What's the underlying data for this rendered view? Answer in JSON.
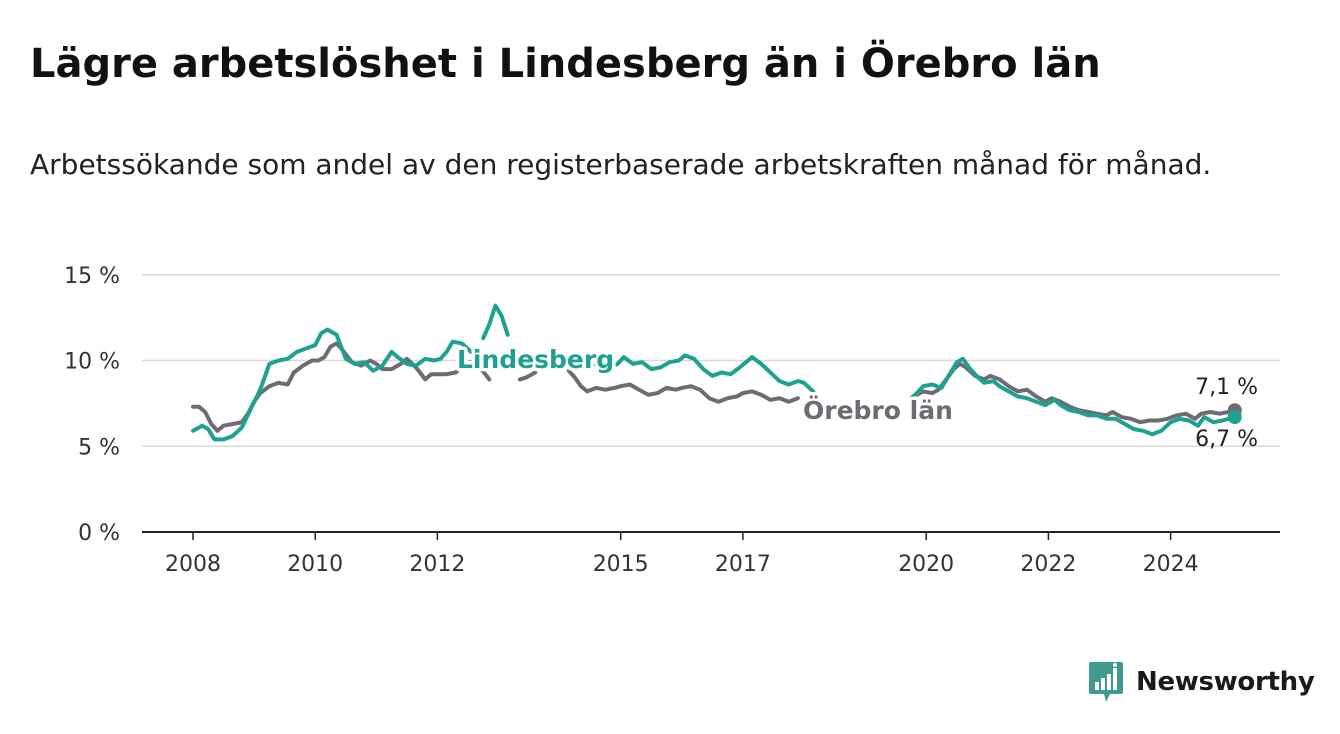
{
  "title": "Lägre arbetslöshet i Lindesberg än i Örebro län",
  "subtitle": "Arbetssökande som andel av den registerbaserade arbetskraften månad för månad.",
  "brand": {
    "name": "Newsworthy",
    "icon": "newsworthy-logo-icon",
    "color": "#3f9a91"
  },
  "chart_data": {
    "type": "line",
    "ylim": [
      0,
      15
    ],
    "xlim": [
      2008,
      2025.15
    ],
    "yticks": [
      {
        "value": 0,
        "label": "0 %"
      },
      {
        "value": 5,
        "label": "5 %"
      },
      {
        "value": 10,
        "label": "10 %"
      },
      {
        "value": 15,
        "label": "15 %"
      }
    ],
    "xticks": [
      {
        "value": 2008,
        "label": "2008"
      },
      {
        "value": 2010,
        "label": "2010"
      },
      {
        "value": 2012,
        "label": "2012"
      },
      {
        "value": 2015,
        "label": "2015"
      },
      {
        "value": 2017,
        "label": "2017"
      },
      {
        "value": 2020,
        "label": "2020"
      },
      {
        "value": 2022,
        "label": "2022"
      },
      {
        "value": 2024,
        "label": "2024"
      }
    ],
    "grid": true,
    "legend": "inline labels",
    "series": [
      {
        "name": "Örebro län",
        "color": "#6e6c72",
        "end_label": "7,1 %",
        "segments": [
          [
            [
              2008.0,
              7.3
            ],
            [
              2008.1,
              7.3
            ],
            [
              2008.2,
              7.0
            ],
            [
              2008.3,
              6.3
            ],
            [
              2008.4,
              5.9
            ],
            [
              2008.5,
              6.2
            ],
            [
              2008.65,
              6.3
            ],
            [
              2008.8,
              6.4
            ],
            [
              2008.9,
              6.9
            ],
            [
              2009.0,
              7.6
            ],
            [
              2009.1,
              8.1
            ],
            [
              2009.25,
              8.5
            ],
            [
              2009.4,
              8.7
            ],
            [
              2009.55,
              8.6
            ],
            [
              2009.65,
              9.3
            ],
            [
              2009.8,
              9.7
            ],
            [
              2009.95,
              10.0
            ],
            [
              2010.05,
              10.0
            ],
            [
              2010.15,
              10.2
            ],
            [
              2010.25,
              10.8
            ],
            [
              2010.35,
              11.0
            ],
            [
              2010.45,
              10.6
            ],
            [
              2010.6,
              9.9
            ],
            [
              2010.75,
              9.7
            ],
            [
              2010.9,
              10.0
            ],
            [
              2011.0,
              9.8
            ],
            [
              2011.1,
              9.5
            ],
            [
              2011.25,
              9.5
            ],
            [
              2011.4,
              9.8
            ],
            [
              2011.5,
              10.1
            ],
            [
              2011.65,
              9.6
            ],
            [
              2011.8,
              8.9
            ],
            [
              2011.9,
              9.2
            ],
            [
              2012.0,
              9.2
            ],
            [
              2012.15,
              9.2
            ],
            [
              2012.3,
              9.3
            ],
            [
              2012.45,
              9.8
            ],
            [
              2012.55,
              9.9
            ],
            [
              2012.7,
              9.6
            ],
            [
              2012.85,
              8.9
            ]
          ],
          [
            [
              2013.35,
              8.9
            ],
            [
              2013.45,
              9.0
            ],
            [
              2013.6,
              9.3
            ]
          ],
          [
            [
              2014.15,
              9.4
            ],
            [
              2014.25,
              9.0
            ],
            [
              2014.35,
              8.5
            ],
            [
              2014.45,
              8.2
            ],
            [
              2014.6,
              8.4
            ],
            [
              2014.75,
              8.3
            ],
            [
              2014.9,
              8.4
            ],
            [
              2015.0,
              8.5
            ],
            [
              2015.15,
              8.6
            ],
            [
              2015.3,
              8.3
            ],
            [
              2015.45,
              8.0
            ],
            [
              2015.6,
              8.1
            ],
            [
              2015.75,
              8.4
            ],
            [
              2015.9,
              8.3
            ],
            [
              2016.0,
              8.4
            ],
            [
              2016.15,
              8.5
            ],
            [
              2016.3,
              8.3
            ],
            [
              2016.45,
              7.8
            ],
            [
              2016.6,
              7.6
            ],
            [
              2016.75,
              7.8
            ],
            [
              2016.9,
              7.9
            ],
            [
              2017.0,
              8.1
            ],
            [
              2017.15,
              8.2
            ],
            [
              2017.3,
              8.0
            ],
            [
              2017.45,
              7.7
            ],
            [
              2017.6,
              7.8
            ],
            [
              2017.75,
              7.6
            ],
            [
              2017.9,
              7.8
            ]
          ],
          [
            [
              2019.85,
              8.0
            ],
            [
              2019.95,
              8.2
            ],
            [
              2020.1,
              8.1
            ],
            [
              2020.2,
              8.3
            ],
            [
              2020.35,
              9.0
            ],
            [
              2020.45,
              9.5
            ],
            [
              2020.55,
              9.8
            ],
            [
              2020.65,
              9.6
            ],
            [
              2020.8,
              9.1
            ],
            [
              2020.95,
              8.9
            ],
            [
              2021.05,
              9.1
            ],
            [
              2021.2,
              8.9
            ],
            [
              2021.35,
              8.5
            ],
            [
              2021.5,
              8.2
            ],
            [
              2021.65,
              8.3
            ],
            [
              2021.8,
              7.9
            ],
            [
              2021.95,
              7.6
            ],
            [
              2022.05,
              7.8
            ],
            [
              2022.2,
              7.6
            ],
            [
              2022.35,
              7.3
            ],
            [
              2022.5,
              7.1
            ],
            [
              2022.65,
              7.0
            ],
            [
              2022.8,
              6.9
            ],
            [
              2022.95,
              6.8
            ],
            [
              2023.05,
              7.0
            ],
            [
              2023.2,
              6.7
            ],
            [
              2023.35,
              6.6
            ],
            [
              2023.5,
              6.4
            ],
            [
              2023.65,
              6.5
            ],
            [
              2023.8,
              6.5
            ],
            [
              2023.95,
              6.6
            ],
            [
              2024.1,
              6.8
            ],
            [
              2024.25,
              6.9
            ],
            [
              2024.4,
              6.6
            ],
            [
              2024.5,
              6.9
            ],
            [
              2024.65,
              7.0
            ],
            [
              2024.8,
              6.9
            ],
            [
              2024.95,
              7.0
            ],
            [
              2025.05,
              7.1
            ]
          ]
        ]
      },
      {
        "name": "Lindesberg",
        "color": "#1fa192",
        "end_label": "6,7 %",
        "segments": [
          [
            [
              2008.0,
              5.9
            ],
            [
              2008.15,
              6.2
            ],
            [
              2008.25,
              6.0
            ],
            [
              2008.35,
              5.4
            ],
            [
              2008.5,
              5.4
            ],
            [
              2008.65,
              5.6
            ],
            [
              2008.8,
              6.1
            ],
            [
              2008.95,
              7.2
            ],
            [
              2009.1,
              8.3
            ],
            [
              2009.25,
              9.8
            ],
            [
              2009.4,
              10.0
            ],
            [
              2009.55,
              10.1
            ],
            [
              2009.7,
              10.5
            ],
            [
              2009.85,
              10.7
            ],
            [
              2010.0,
              10.9
            ],
            [
              2010.1,
              11.6
            ],
            [
              2010.2,
              11.8
            ],
            [
              2010.35,
              11.5
            ],
            [
              2010.5,
              10.1
            ],
            [
              2010.65,
              9.8
            ],
            [
              2010.8,
              9.9
            ],
            [
              2010.95,
              9.4
            ],
            [
              2011.1,
              9.7
            ],
            [
              2011.25,
              10.5
            ],
            [
              2011.35,
              10.2
            ],
            [
              2011.5,
              9.8
            ],
            [
              2011.65,
              9.7
            ],
            [
              2011.8,
              10.1
            ],
            [
              2011.95,
              10.0
            ],
            [
              2012.05,
              10.1
            ],
            [
              2012.15,
              10.5
            ],
            [
              2012.25,
              11.1
            ],
            [
              2012.4,
              11.0
            ],
            [
              2012.55,
              10.5
            ],
            [
              2012.7,
              10.4
            ]
          ],
          [
            [
              2012.75,
              11.3
            ],
            [
              2012.85,
              12.1
            ],
            [
              2012.95,
              13.2
            ],
            [
              2013.05,
              12.6
            ],
            [
              2013.15,
              11.5
            ]
          ],
          [
            [
              2014.1,
              10.3
            ],
            [
              2014.25,
              10.1
            ],
            [
              2014.35,
              9.9
            ],
            [
              2014.5,
              9.7
            ],
            [
              2014.65,
              9.9
            ],
            [
              2014.8,
              9.6
            ],
            [
              2014.95,
              9.8
            ],
            [
              2015.05,
              10.2
            ],
            [
              2015.2,
              9.8
            ],
            [
              2015.35,
              9.9
            ],
            [
              2015.5,
              9.5
            ],
            [
              2015.65,
              9.6
            ],
            [
              2015.8,
              9.9
            ],
            [
              2015.95,
              10.0
            ],
            [
              2016.05,
              10.3
            ],
            [
              2016.2,
              10.1
            ],
            [
              2016.35,
              9.5
            ],
            [
              2016.5,
              9.1
            ],
            [
              2016.65,
              9.3
            ],
            [
              2016.8,
              9.2
            ],
            [
              2016.95,
              9.6
            ],
            [
              2017.05,
              9.9
            ],
            [
              2017.15,
              10.2
            ],
            [
              2017.3,
              9.8
            ],
            [
              2017.45,
              9.3
            ],
            [
              2017.6,
              8.8
            ],
            [
              2017.75,
              8.6
            ],
            [
              2017.9,
              8.8
            ],
            [
              2018.0,
              8.7
            ],
            [
              2018.15,
              8.2
            ]
          ],
          [
            [
              2019.75,
              7.8
            ],
            [
              2019.85,
              8.1
            ],
            [
              2019.95,
              8.5
            ],
            [
              2020.1,
              8.6
            ],
            [
              2020.25,
              8.4
            ],
            [
              2020.4,
              9.3
            ],
            [
              2020.5,
              9.9
            ],
            [
              2020.6,
              10.1
            ],
            [
              2020.7,
              9.6
            ],
            [
              2020.85,
              9.0
            ],
            [
              2020.95,
              8.7
            ],
            [
              2021.1,
              8.8
            ],
            [
              2021.2,
              8.5
            ],
            [
              2021.35,
              8.2
            ],
            [
              2021.5,
              7.9
            ],
            [
              2021.65,
              7.8
            ],
            [
              2021.8,
              7.6
            ],
            [
              2021.95,
              7.4
            ],
            [
              2022.1,
              7.7
            ],
            [
              2022.2,
              7.4
            ],
            [
              2022.35,
              7.1
            ],
            [
              2022.5,
              7.0
            ],
            [
              2022.65,
              6.8
            ],
            [
              2022.8,
              6.8
            ],
            [
              2022.95,
              6.6
            ],
            [
              2023.1,
              6.6
            ],
            [
              2023.25,
              6.3
            ],
            [
              2023.4,
              6.0
            ],
            [
              2023.55,
              5.9
            ],
            [
              2023.7,
              5.7
            ],
            [
              2023.85,
              5.9
            ],
            [
              2024.0,
              6.4
            ],
            [
              2024.15,
              6.6
            ],
            [
              2024.3,
              6.5
            ],
            [
              2024.45,
              6.2
            ],
            [
              2024.55,
              6.7
            ],
            [
              2024.7,
              6.4
            ],
            [
              2024.85,
              6.5
            ],
            [
              2024.95,
              6.6
            ],
            [
              2025.05,
              6.7
            ]
          ]
        ]
      }
    ]
  }
}
